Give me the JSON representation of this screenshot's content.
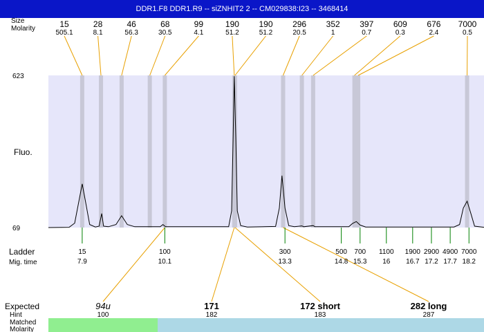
{
  "title": "DDR1.F8  DDR1.R9 -- siZNHIT2 2 -- CM029838:I23 -- 3468414",
  "colors": {
    "title_bg": "#0a16c8",
    "plot_bg": "#e6e6fa",
    "band": "#c8c8d7",
    "leader": "#e8a000",
    "tick": "#008000",
    "matched_green": "#90ee90",
    "matched_blue": "#add8e6"
  },
  "chart_data": {
    "type": "line",
    "row_labels": {
      "size": "Size",
      "molarity": "Molarity",
      "ladder": "Ladder",
      "mig_time": "Mig. time",
      "expected": "Expected",
      "hint": "Hint",
      "matched": "Matched",
      "molarity_bottom": "Molarity"
    },
    "ylabel": "Fluo.",
    "ylim": [
      69,
      623
    ],
    "y_ticks": [
      "623",
      "69"
    ],
    "xlim": [
      7.0,
      18.6
    ],
    "peaks": [
      {
        "size": "15",
        "molarity": "505.1",
        "time": 7.9
      },
      {
        "size": "28",
        "molarity": "8.1",
        "time": 8.4
      },
      {
        "size": "46",
        "molarity": "56.3",
        "time": 8.95
      },
      {
        "size": "68",
        "molarity": "30.5",
        "time": 9.7
      },
      {
        "size": "99",
        "molarity": "4.1",
        "time": 10.1
      },
      {
        "size": "190",
        "molarity": "51.2",
        "time": 11.95
      },
      {
        "size": "190",
        "molarity": "51.2",
        "time": 11.97
      },
      {
        "size": "296",
        "molarity": "20.5",
        "time": 13.25
      },
      {
        "size": "352",
        "molarity": "1",
        "time": 13.75
      },
      {
        "size": "397",
        "molarity": "0.7",
        "time": 14.05
      },
      {
        "size": "609",
        "molarity": "0.3",
        "time": 15.15
      },
      {
        "size": "676",
        "molarity": "2.4",
        "time": 15.25
      },
      {
        "size": "7000",
        "molarity": "0.5",
        "time": 18.15
      }
    ],
    "ladder": [
      {
        "size": "15",
        "time": "7.9"
      },
      {
        "size": "100",
        "time": "10.1"
      },
      {
        "size": "300",
        "time": "13.3"
      },
      {
        "size": "500",
        "time": "14.8"
      },
      {
        "size": "700",
        "time": "15.3"
      },
      {
        "size": "1100",
        "time": "16"
      },
      {
        "size": "1900",
        "time": "16.7"
      },
      {
        "size": "2900",
        "time": "17.2"
      },
      {
        "size": "4900",
        "time": "17.7"
      },
      {
        "size": "7000",
        "time": "18.2"
      }
    ],
    "trace": [
      [
        7.0,
        69
      ],
      [
        7.55,
        70
      ],
      [
        7.7,
        85
      ],
      [
        7.82,
        170
      ],
      [
        7.9,
        228
      ],
      [
        7.98,
        170
      ],
      [
        8.1,
        80
      ],
      [
        8.25,
        71
      ],
      [
        8.35,
        74
      ],
      [
        8.42,
        120
      ],
      [
        8.47,
        74
      ],
      [
        8.6,
        72
      ],
      [
        8.8,
        80
      ],
      [
        8.95,
        112
      ],
      [
        9.1,
        80
      ],
      [
        9.3,
        72
      ],
      [
        9.98,
        72
      ],
      [
        10.05,
        80
      ],
      [
        10.12,
        72
      ],
      [
        11.8,
        72
      ],
      [
        11.88,
        130
      ],
      [
        11.92,
        400
      ],
      [
        11.95,
        620
      ],
      [
        11.99,
        400
      ],
      [
        12.03,
        130
      ],
      [
        12.12,
        76
      ],
      [
        12.3,
        71
      ],
      [
        13.05,
        73
      ],
      [
        13.15,
        140
      ],
      [
        13.22,
        258
      ],
      [
        13.3,
        140
      ],
      [
        13.4,
        76
      ],
      [
        13.55,
        72
      ],
      [
        13.75,
        75
      ],
      [
        13.8,
        72
      ],
      [
        14.05,
        76
      ],
      [
        14.1,
        72
      ],
      [
        15.0,
        72
      ],
      [
        15.1,
        84
      ],
      [
        15.2,
        91
      ],
      [
        15.3,
        78
      ],
      [
        15.45,
        71
      ],
      [
        17.8,
        71
      ],
      [
        17.95,
        80
      ],
      [
        18.05,
        140
      ],
      [
        18.15,
        165
      ],
      [
        18.25,
        120
      ],
      [
        18.35,
        74
      ],
      [
        18.6,
        70
      ]
    ],
    "expected": [
      {
        "label": "94u",
        "hint": "100",
        "matched": "99",
        "molarity": "4.1",
        "match_time": 10.1,
        "style": "italic",
        "color": "green"
      },
      {
        "label": "171",
        "hint": "182",
        "matched": "190",
        "molarity": "51.2",
        "match_time": 11.95,
        "style": "bold",
        "color": "blue"
      },
      {
        "label": "172 short",
        "hint": "183",
        "matched": "190",
        "molarity": "51.2",
        "match_time": 11.97,
        "style": "bold",
        "color": "blue"
      },
      {
        "label": "282 long",
        "hint": "287",
        "matched": "296",
        "molarity": "20.5",
        "match_time": 13.25,
        "style": "bold",
        "color": "blue"
      }
    ]
  }
}
